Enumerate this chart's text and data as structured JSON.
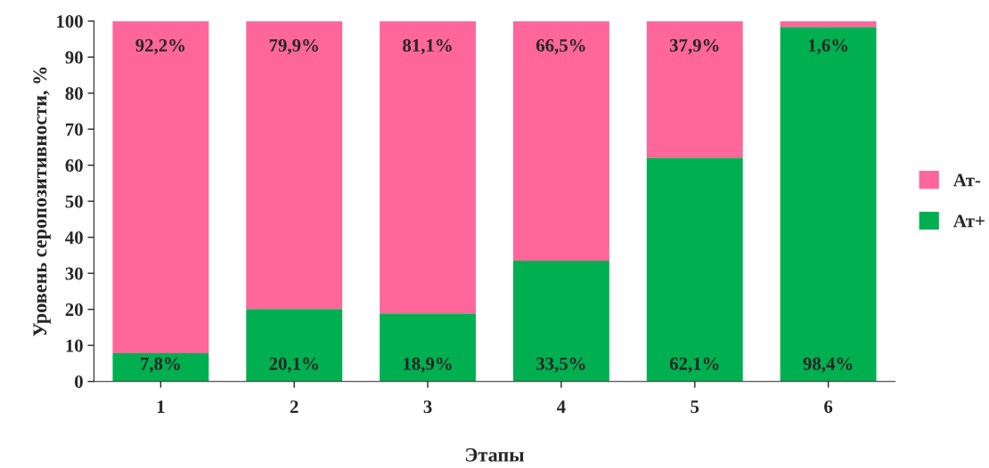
{
  "chart_data": {
    "type": "bar",
    "stacked": true,
    "categories": [
      "1",
      "2",
      "3",
      "4",
      "5",
      "6"
    ],
    "series": [
      {
        "name": "Ат+",
        "color": "#00b050",
        "values": [
          7.8,
          20.1,
          18.9,
          33.5,
          62.1,
          98.4
        ],
        "value_labels": [
          "7,8%",
          "20,1%",
          "18,9%",
          "33,5%",
          "62,1%",
          "98,4%"
        ]
      },
      {
        "name": "Ат-",
        "color": "#ff6699",
        "values": [
          92.2,
          79.9,
          81.1,
          66.5,
          37.9,
          1.6
        ],
        "value_labels": [
          "92,2%",
          "79,9%",
          "81,1%",
          "66,5%",
          "37,9%",
          "1,6%"
        ]
      }
    ],
    "xlabel": "Этапы",
    "ylabel": "Уровень серопозитивности, %",
    "ylim": [
      0,
      100
    ],
    "yticks": [
      0,
      10,
      20,
      30,
      40,
      50,
      60,
      70,
      80,
      90,
      100
    ],
    "grid": false,
    "legend": "right"
  }
}
